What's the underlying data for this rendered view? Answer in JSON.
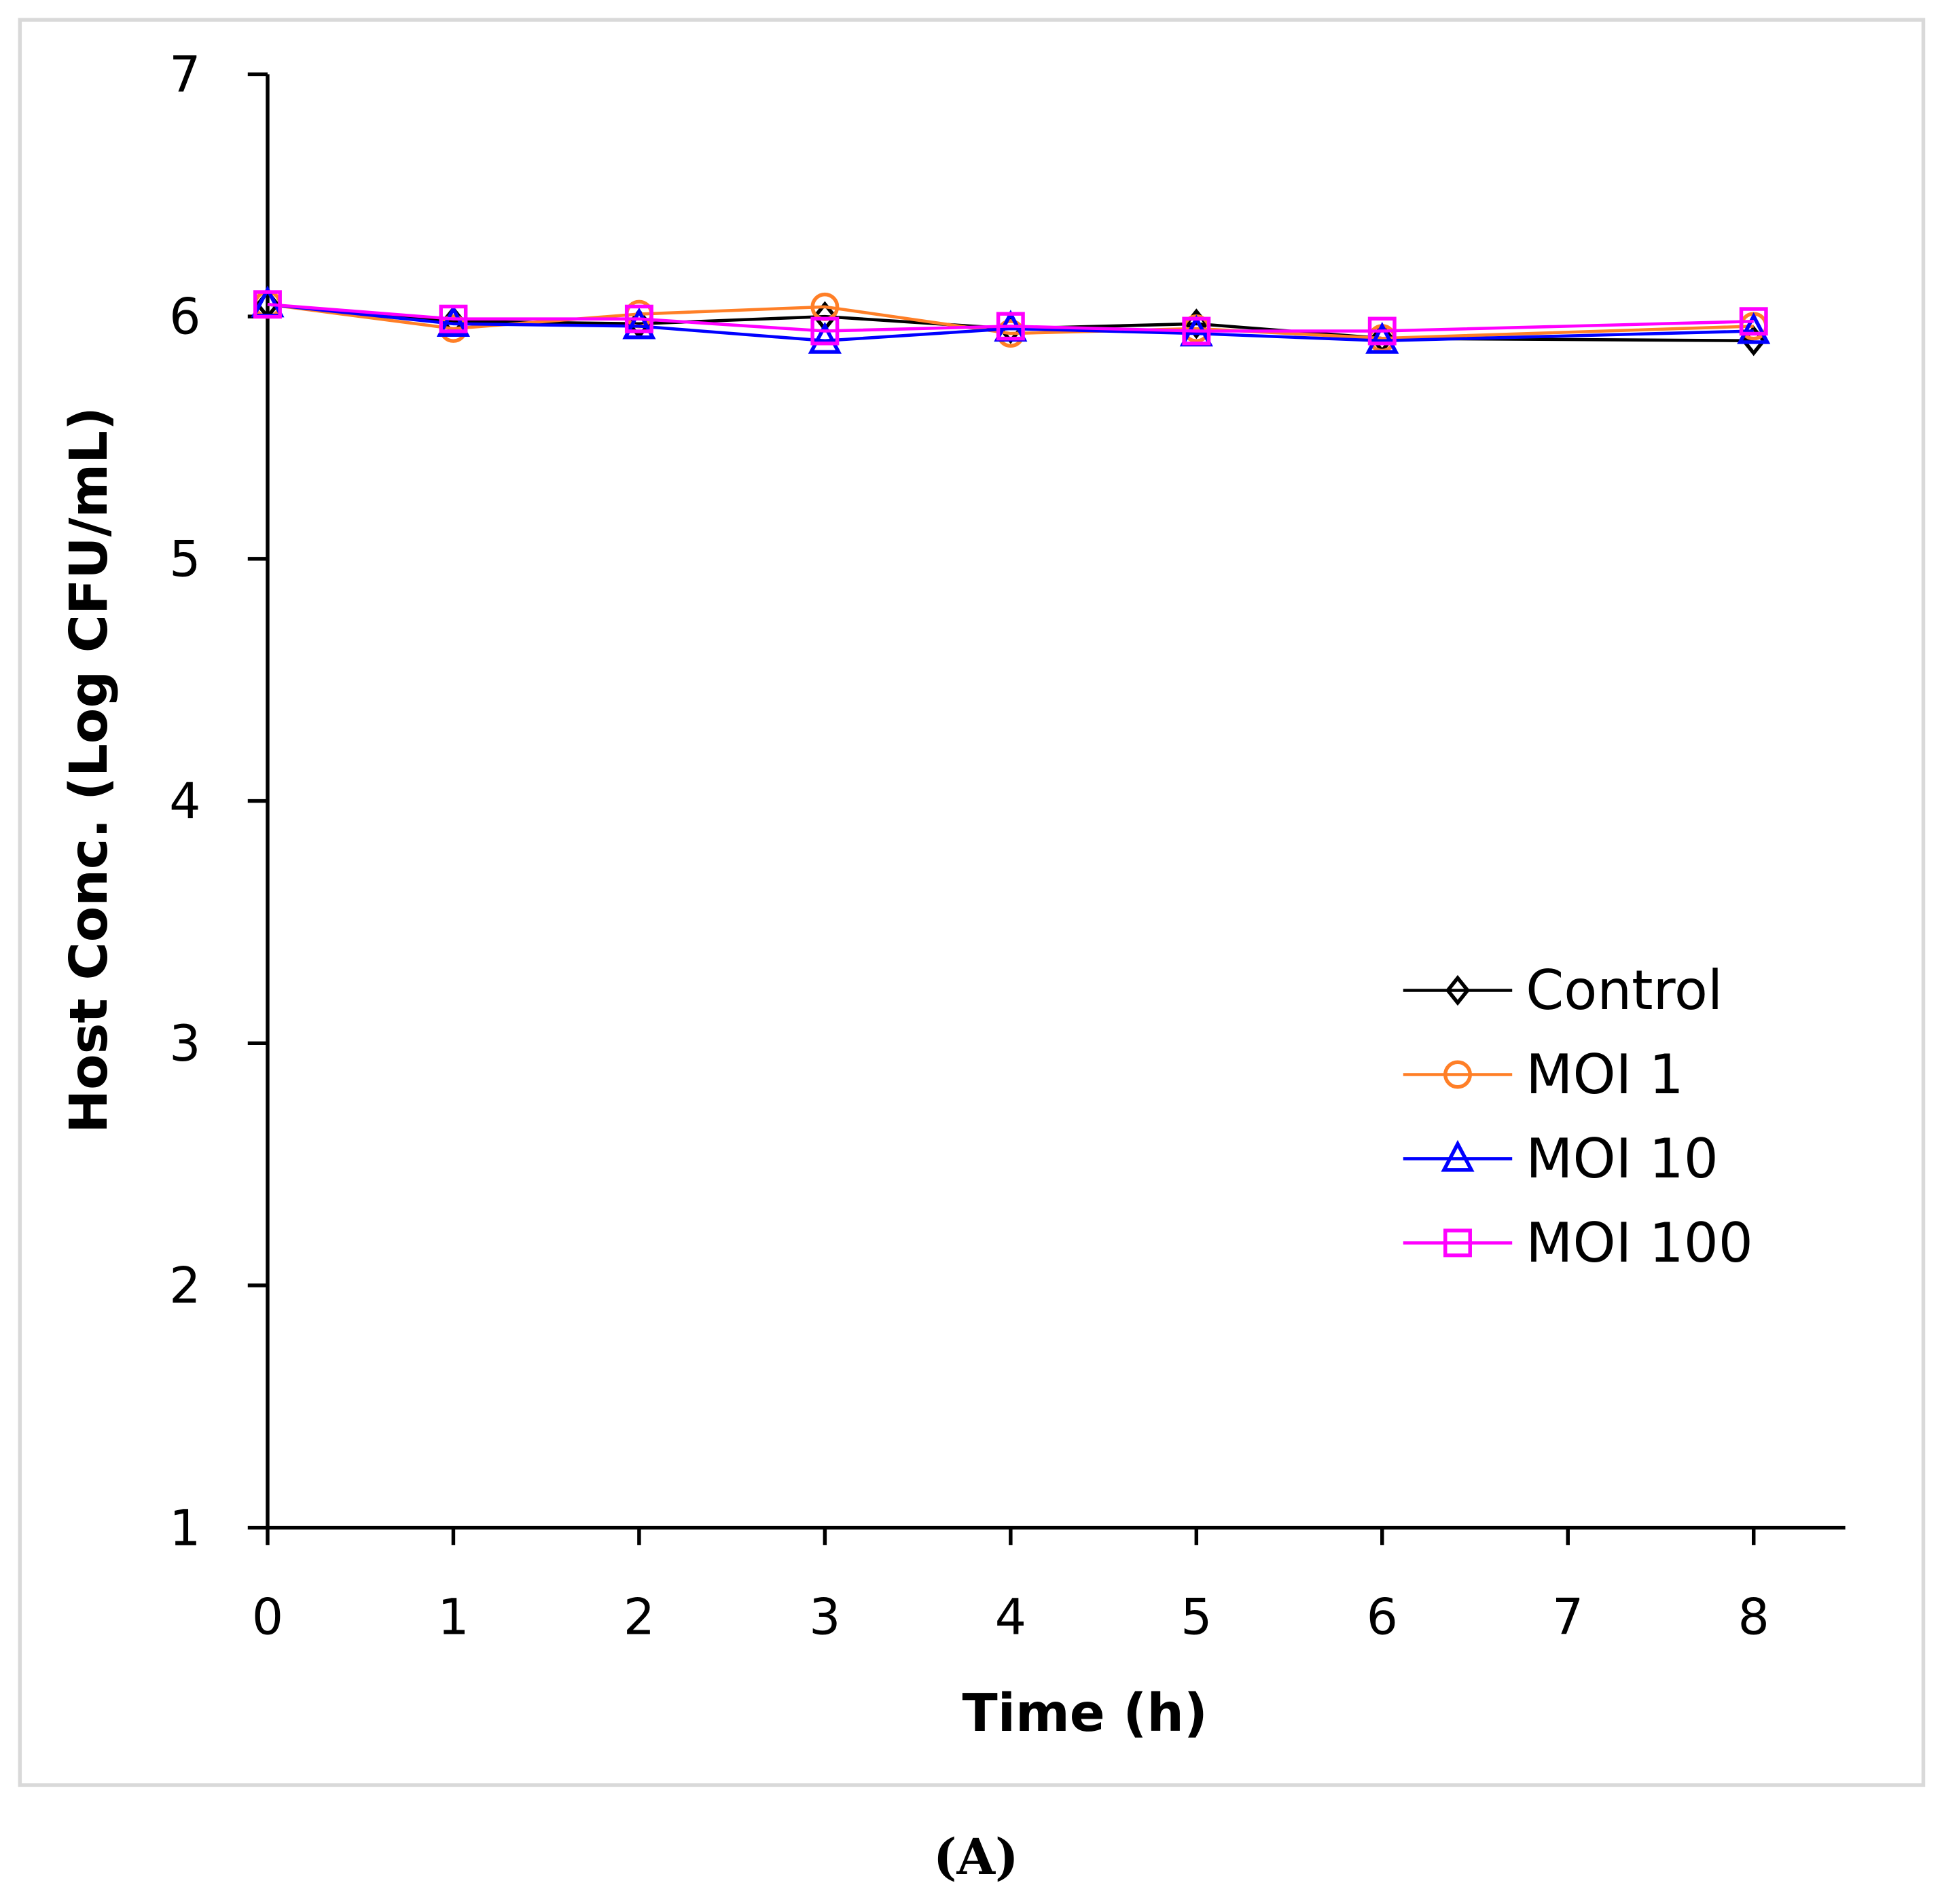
{
  "chart_data": {
    "type": "line",
    "title": "",
    "xlabel": "Time (h)",
    "ylabel": "Host Conc. (Log CFU/mL)",
    "xlim": [
      0,
      8.5
    ],
    "ylim": [
      1,
      7
    ],
    "xticks": [
      "0",
      "1",
      "2",
      "3",
      "4",
      "5",
      "6",
      "7",
      "8"
    ],
    "yticks": [
      "1",
      "2",
      "3",
      "4",
      "5",
      "6",
      "7"
    ],
    "grid": false,
    "legend_position": "center-right",
    "x": [
      0,
      1,
      2,
      3,
      4,
      5,
      6,
      8
    ],
    "series": [
      {
        "name": "Control",
        "color": "#000000",
        "marker": "diamond",
        "values": [
          6.05,
          5.98,
          5.97,
          6.0,
          5.95,
          5.97,
          5.91,
          5.9
        ]
      },
      {
        "name": "MOI 1",
        "color": "#ff7f27",
        "marker": "circle",
        "values": [
          6.05,
          5.95,
          6.01,
          6.04,
          5.93,
          5.95,
          5.91,
          5.96
        ]
      },
      {
        "name": "MOI 10",
        "color": "#0000ff",
        "marker": "triangle",
        "values": [
          6.05,
          5.97,
          5.96,
          5.9,
          5.95,
          5.93,
          5.9,
          5.94
        ]
      },
      {
        "name": "MOI 100",
        "color": "#ff00ff",
        "marker": "square",
        "values": [
          6.05,
          5.99,
          5.99,
          5.94,
          5.96,
          5.94,
          5.94,
          5.98
        ]
      }
    ],
    "caption": "(A)"
  }
}
